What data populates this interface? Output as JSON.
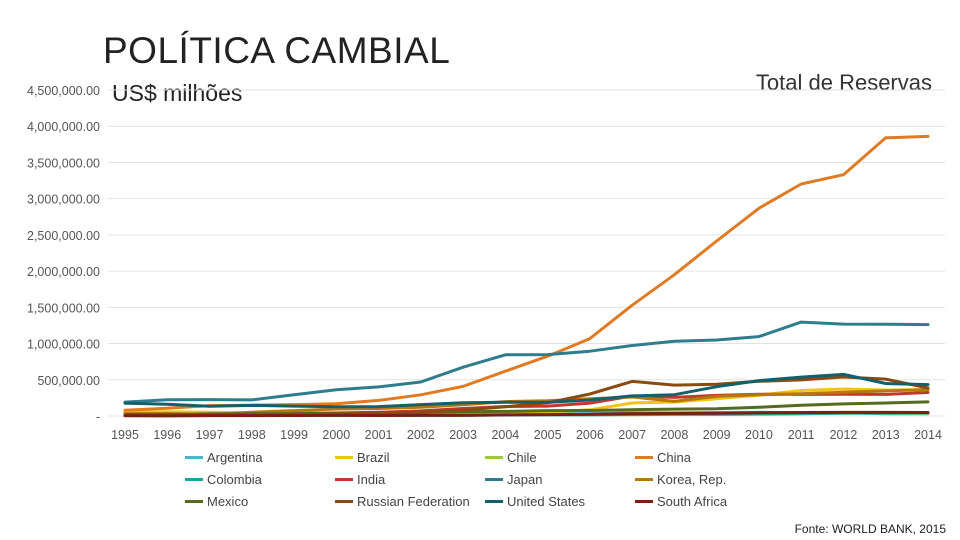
{
  "header": {
    "title": "POLÍTICA CAMBIAL",
    "subtitle": "US$ milhões",
    "right_label": "Total de Reservas"
  },
  "footer": {
    "source": "Fonte: WORLD BANK, 2015"
  },
  "chart_data": {
    "type": "line",
    "x": [
      "1995",
      "1996",
      "1997",
      "1998",
      "1999",
      "2000",
      "2001",
      "2002",
      "2003",
      "2004",
      "2005",
      "2006",
      "2007",
      "2008",
      "2009",
      "2010",
      "2011",
      "2012",
      "2013",
      "2014"
    ],
    "y_ticks": [
      "-",
      "500,000.00",
      "1,000,000.00",
      "1,500,000.00",
      "2,000,000.00",
      "2,500,000.00",
      "3,000,000.00",
      "3,500,000.00",
      "4,000,000.00",
      "4,500,000.00"
    ],
    "ylim": [
      0,
      4500000
    ],
    "grid": true,
    "legend_position": "bottom",
    "series": [
      {
        "name": "Argentina",
        "color": "#4bb8c8",
        "values": [
          15000,
          19000,
          22000,
          25000,
          26000,
          25000,
          15000,
          10000,
          14000,
          19000,
          27000,
          32000,
          46000,
          46000,
          48000,
          52000,
          46000,
          43000,
          31000,
          31000
        ]
      },
      {
        "name": "Brazil",
        "color": "#f0c419",
        "values": [
          52000,
          60000,
          52000,
          44000,
          36000,
          33000,
          36000,
          38000,
          49000,
          53000,
          54000,
          86000,
          180000,
          193000,
          239000,
          289000,
          352000,
          373000,
          359000,
          364000
        ]
      },
      {
        "name": "Chile",
        "color": "#9dc83a",
        "values": [
          15000,
          15000,
          18000,
          16000,
          15000,
          15000,
          14000,
          15000,
          16000,
          16000,
          17000,
          19000,
          17000,
          23000,
          25000,
          28000,
          42000,
          42000,
          41000,
          40000
        ]
      },
      {
        "name": "China",
        "color": "#e07b24",
        "values": [
          80000,
          107000,
          143000,
          149000,
          158000,
          168000,
          216000,
          292000,
          409000,
          619000,
          825000,
          1068000,
          1530000,
          1950000,
          2416000,
          2867000,
          3203000,
          3331000,
          3840000,
          3860000
        ]
      },
      {
        "name": "Colombia",
        "color": "#1fa39a",
        "values": [
          8000,
          10000,
          10000,
          9000,
          8000,
          9000,
          10000,
          11000,
          11000,
          14000,
          15000,
          15000,
          21000,
          24000,
          25000,
          28000,
          32000,
          37000,
          43000,
          47000
        ]
      },
      {
        "name": "India",
        "color": "#c0392b",
        "values": [
          22000,
          24000,
          29000,
          32000,
          38000,
          41000,
          51000,
          71000,
          103000,
          131000,
          137000,
          178000,
          276000,
          257000,
          284000,
          300000,
          298000,
          300000,
          298000,
          325000
        ]
      },
      {
        "name": "Japan",
        "color": "#2e7d8c",
        "values": [
          192000,
          225000,
          227000,
          222000,
          293000,
          361000,
          401000,
          469000,
          673000,
          845000,
          847000,
          895000,
          973000,
          1031000,
          1049000,
          1096000,
          1296000,
          1268000,
          1267000,
          1261000
        ]
      },
      {
        "name": "Korea, Rep.",
        "color": "#b7770f",
        "values": [
          33000,
          34000,
          20000,
          52000,
          74000,
          96000,
          103000,
          121000,
          155000,
          199000,
          210000,
          239000,
          262000,
          201000,
          270000,
          292000,
          306000,
          327000,
          346000,
          364000
        ]
      },
      {
        "name": "Mexico",
        "color": "#556b1f",
        "values": [
          17000,
          20000,
          29000,
          32000,
          32000,
          36000,
          45000,
          51000,
          59000,
          64000,
          74000,
          76000,
          87000,
          95000,
          99000,
          120000,
          149000,
          167000,
          180000,
          195000
        ]
      },
      {
        "name": "Russian Federation",
        "color": "#8b4a12",
        "values": [
          18000,
          16000,
          17000,
          12000,
          12000,
          27000,
          36000,
          48000,
          78000,
          127000,
          182000,
          304000,
          478000,
          427000,
          439000,
          479000,
          498000,
          538000,
          510000,
          386000
        ]
      },
      {
        "name": "United States",
        "color": "#13606b",
        "values": [
          176000,
          161000,
          134000,
          146000,
          137000,
          128000,
          130000,
          158000,
          184000,
          190000,
          188000,
          221000,
          278000,
          294000,
          405000,
          489000,
          537000,
          574000,
          448000,
          434000
        ]
      },
      {
        "name": "South Africa",
        "color": "#7a1f12",
        "values": [
          4000,
          2000,
          6000,
          6000,
          7000,
          8000,
          7000,
          8000,
          8000,
          15000,
          20000,
          25000,
          33000,
          34000,
          39000,
          44000,
          49000,
          50000,
          50000,
          49000
        ]
      }
    ]
  }
}
